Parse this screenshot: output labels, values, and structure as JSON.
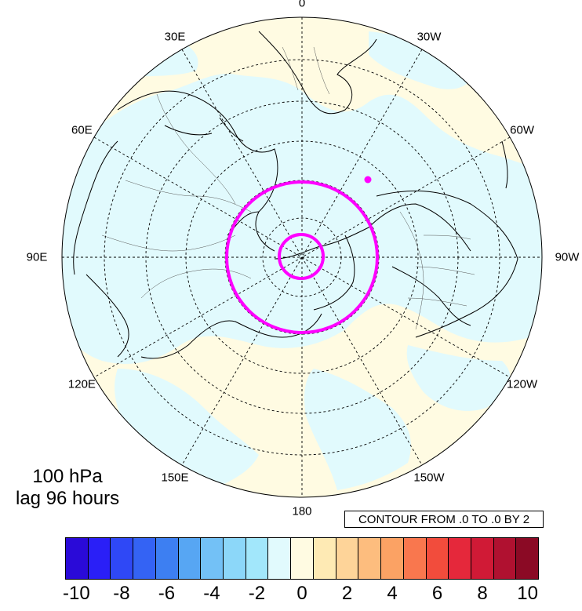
{
  "title": {
    "line1": "100 hPa",
    "line2": "lag 96 hours"
  },
  "contour_label": "CONTOUR FROM .0 TO .0 BY 2",
  "longitude_labels": [
    {
      "text": "0",
      "lon": 0
    },
    {
      "text": "30W",
      "lon": -30
    },
    {
      "text": "60W",
      "lon": -60
    },
    {
      "text": "90W",
      "lon": -90
    },
    {
      "text": "120W",
      "lon": -120
    },
    {
      "text": "150W",
      "lon": -150
    },
    {
      "text": "180",
      "lon": 180
    },
    {
      "text": "150E",
      "lon": 150
    },
    {
      "text": "120E",
      "lon": 120
    },
    {
      "text": "90E",
      "lon": 90
    },
    {
      "text": "60E",
      "lon": 60
    },
    {
      "text": "30E",
      "lon": 30
    }
  ],
  "projection": "north polar stereographic",
  "colors": {
    "positive_shade": "#fffbe2",
    "negative_shade": "#e1fafd",
    "coast": "#000000",
    "contour_line": "#ff00ff"
  },
  "colorbar": {
    "ticks": [
      "-10",
      "-8",
      "-6",
      "-4",
      "-2",
      "0",
      "2",
      "4",
      "6",
      "8",
      "10"
    ],
    "colors": [
      "#2a0ad8",
      "#2a1ff7",
      "#2f48f6",
      "#3463f4",
      "#3d7ff2",
      "#57a6f3",
      "#73c1f6",
      "#8cd7f9",
      "#a2e7fb",
      "#e1fafd",
      "#fffbe2",
      "#feeab4",
      "#fed499",
      "#fdbd7e",
      "#fba264",
      "#f9774e",
      "#f24c3c",
      "#e5283b",
      "#d01a36",
      "#b01130",
      "#8b0a25"
    ]
  }
}
